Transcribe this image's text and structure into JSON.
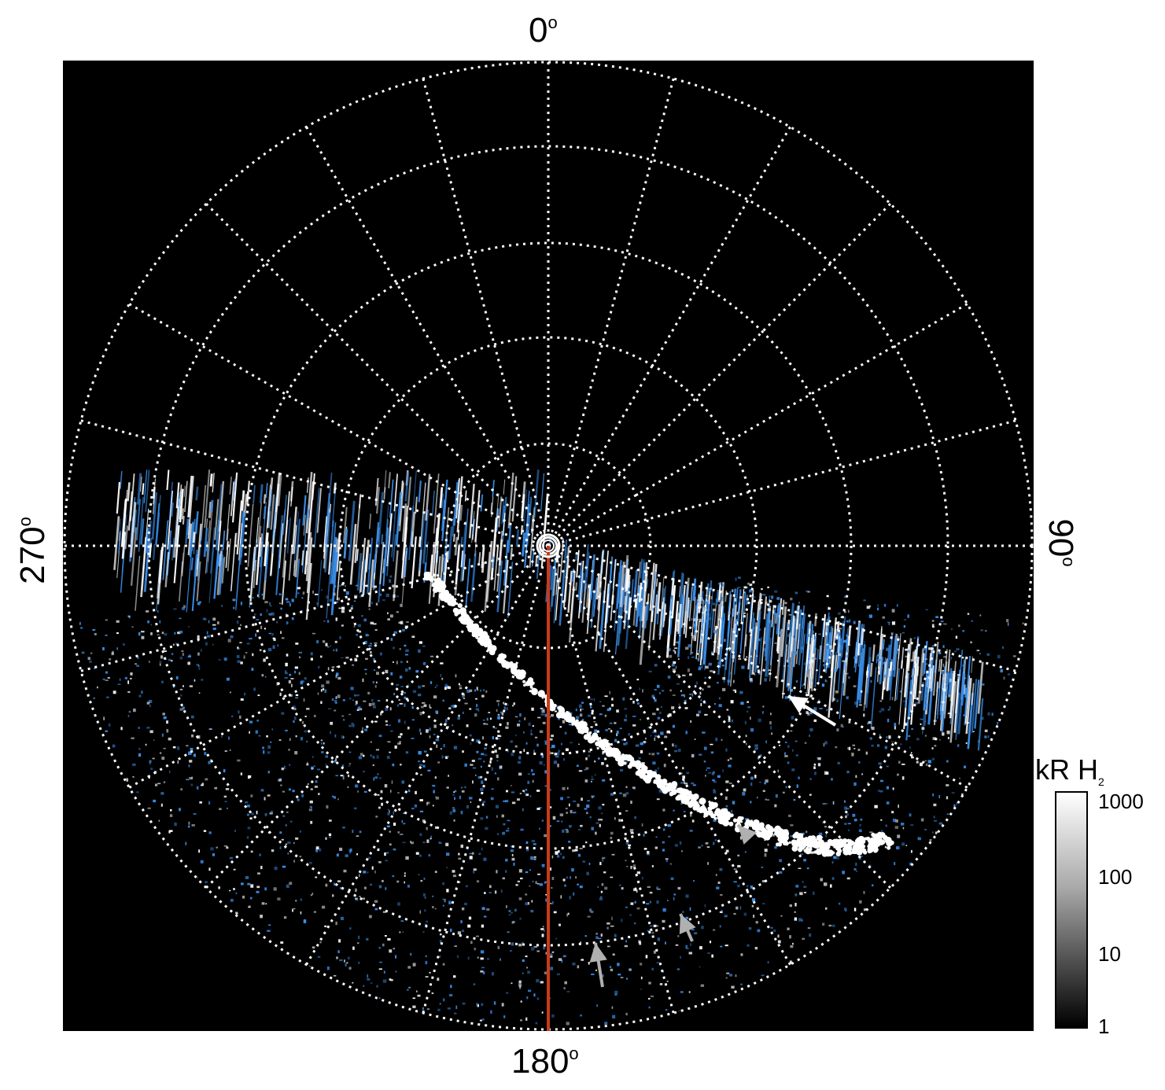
{
  "angle_labels": {
    "top": "0",
    "right": "90",
    "bottom": "180",
    "left": "270",
    "degree_symbol": "o"
  },
  "colorbar": {
    "title": "kR H",
    "title_subscript": "2",
    "ticks": [
      "1000",
      "100",
      "10",
      "1"
    ],
    "scale": "log"
  },
  "colors": {
    "background": "#000000",
    "grid": "#ffffff",
    "emission_blue": "#3a8ee8",
    "emission_white": "#ffffff",
    "meridian_line": "#c83a1a",
    "arrow_white": "#ffffff",
    "arrow_gray": "#b0b0b0"
  }
}
